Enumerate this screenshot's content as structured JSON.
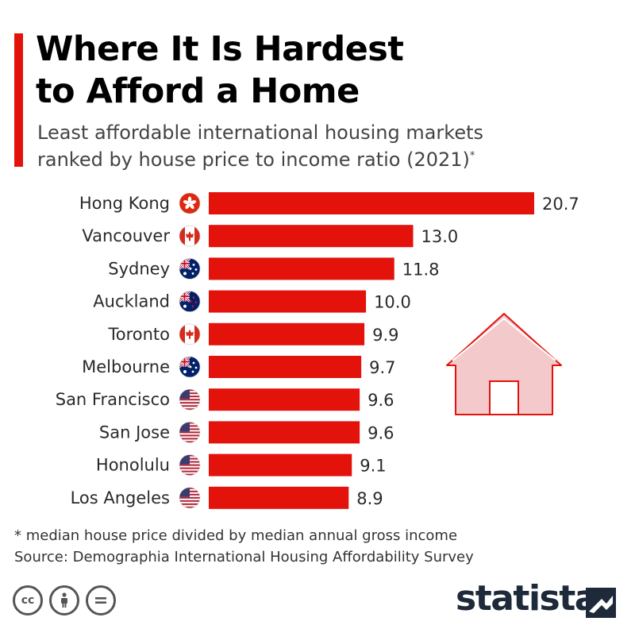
{
  "title_line1": "Where It Is Hardest",
  "title_line2": "to Afford a Home",
  "subtitle_line1": "Least affordable international housing markets",
  "subtitle_line2": "ranked by house price to income ratio (2021)",
  "subtitle_mark": "*",
  "footnote": "* median house price divided by median annual gross income",
  "source": "Source: Demographia International Housing Affordability Survey",
  "brand": "statista",
  "license": [
    "cc",
    "by",
    "nd"
  ],
  "colors": {
    "bar": "#e3120b",
    "accent": "#e3120b",
    "house": "#f3c9cc"
  },
  "chart_data": {
    "type": "bar",
    "orientation": "horizontal",
    "categories": [
      "Hong Kong",
      "Vancouver",
      "Sydney",
      "Auckland",
      "Toronto",
      "Melbourne",
      "San Francisco",
      "San Jose",
      "Honolulu",
      "Los Angeles"
    ],
    "values": [
      20.7,
      13.0,
      11.8,
      10.0,
      9.9,
      9.7,
      9.6,
      9.6,
      9.1,
      8.9
    ],
    "value_labels": [
      "20.7",
      "13.0",
      "11.8",
      "10.0",
      "9.9",
      "9.7",
      "9.6",
      "9.6",
      "9.1",
      "8.9"
    ],
    "flags": [
      "hong-kong-flag",
      "canada-flag",
      "australia-flag",
      "new-zealand-flag",
      "canada-flag",
      "australia-flag",
      "usa-flag",
      "usa-flag",
      "usa-flag",
      "usa-flag"
    ],
    "xlim": [
      0,
      20.7
    ],
    "grid": false,
    "legend": "none"
  }
}
